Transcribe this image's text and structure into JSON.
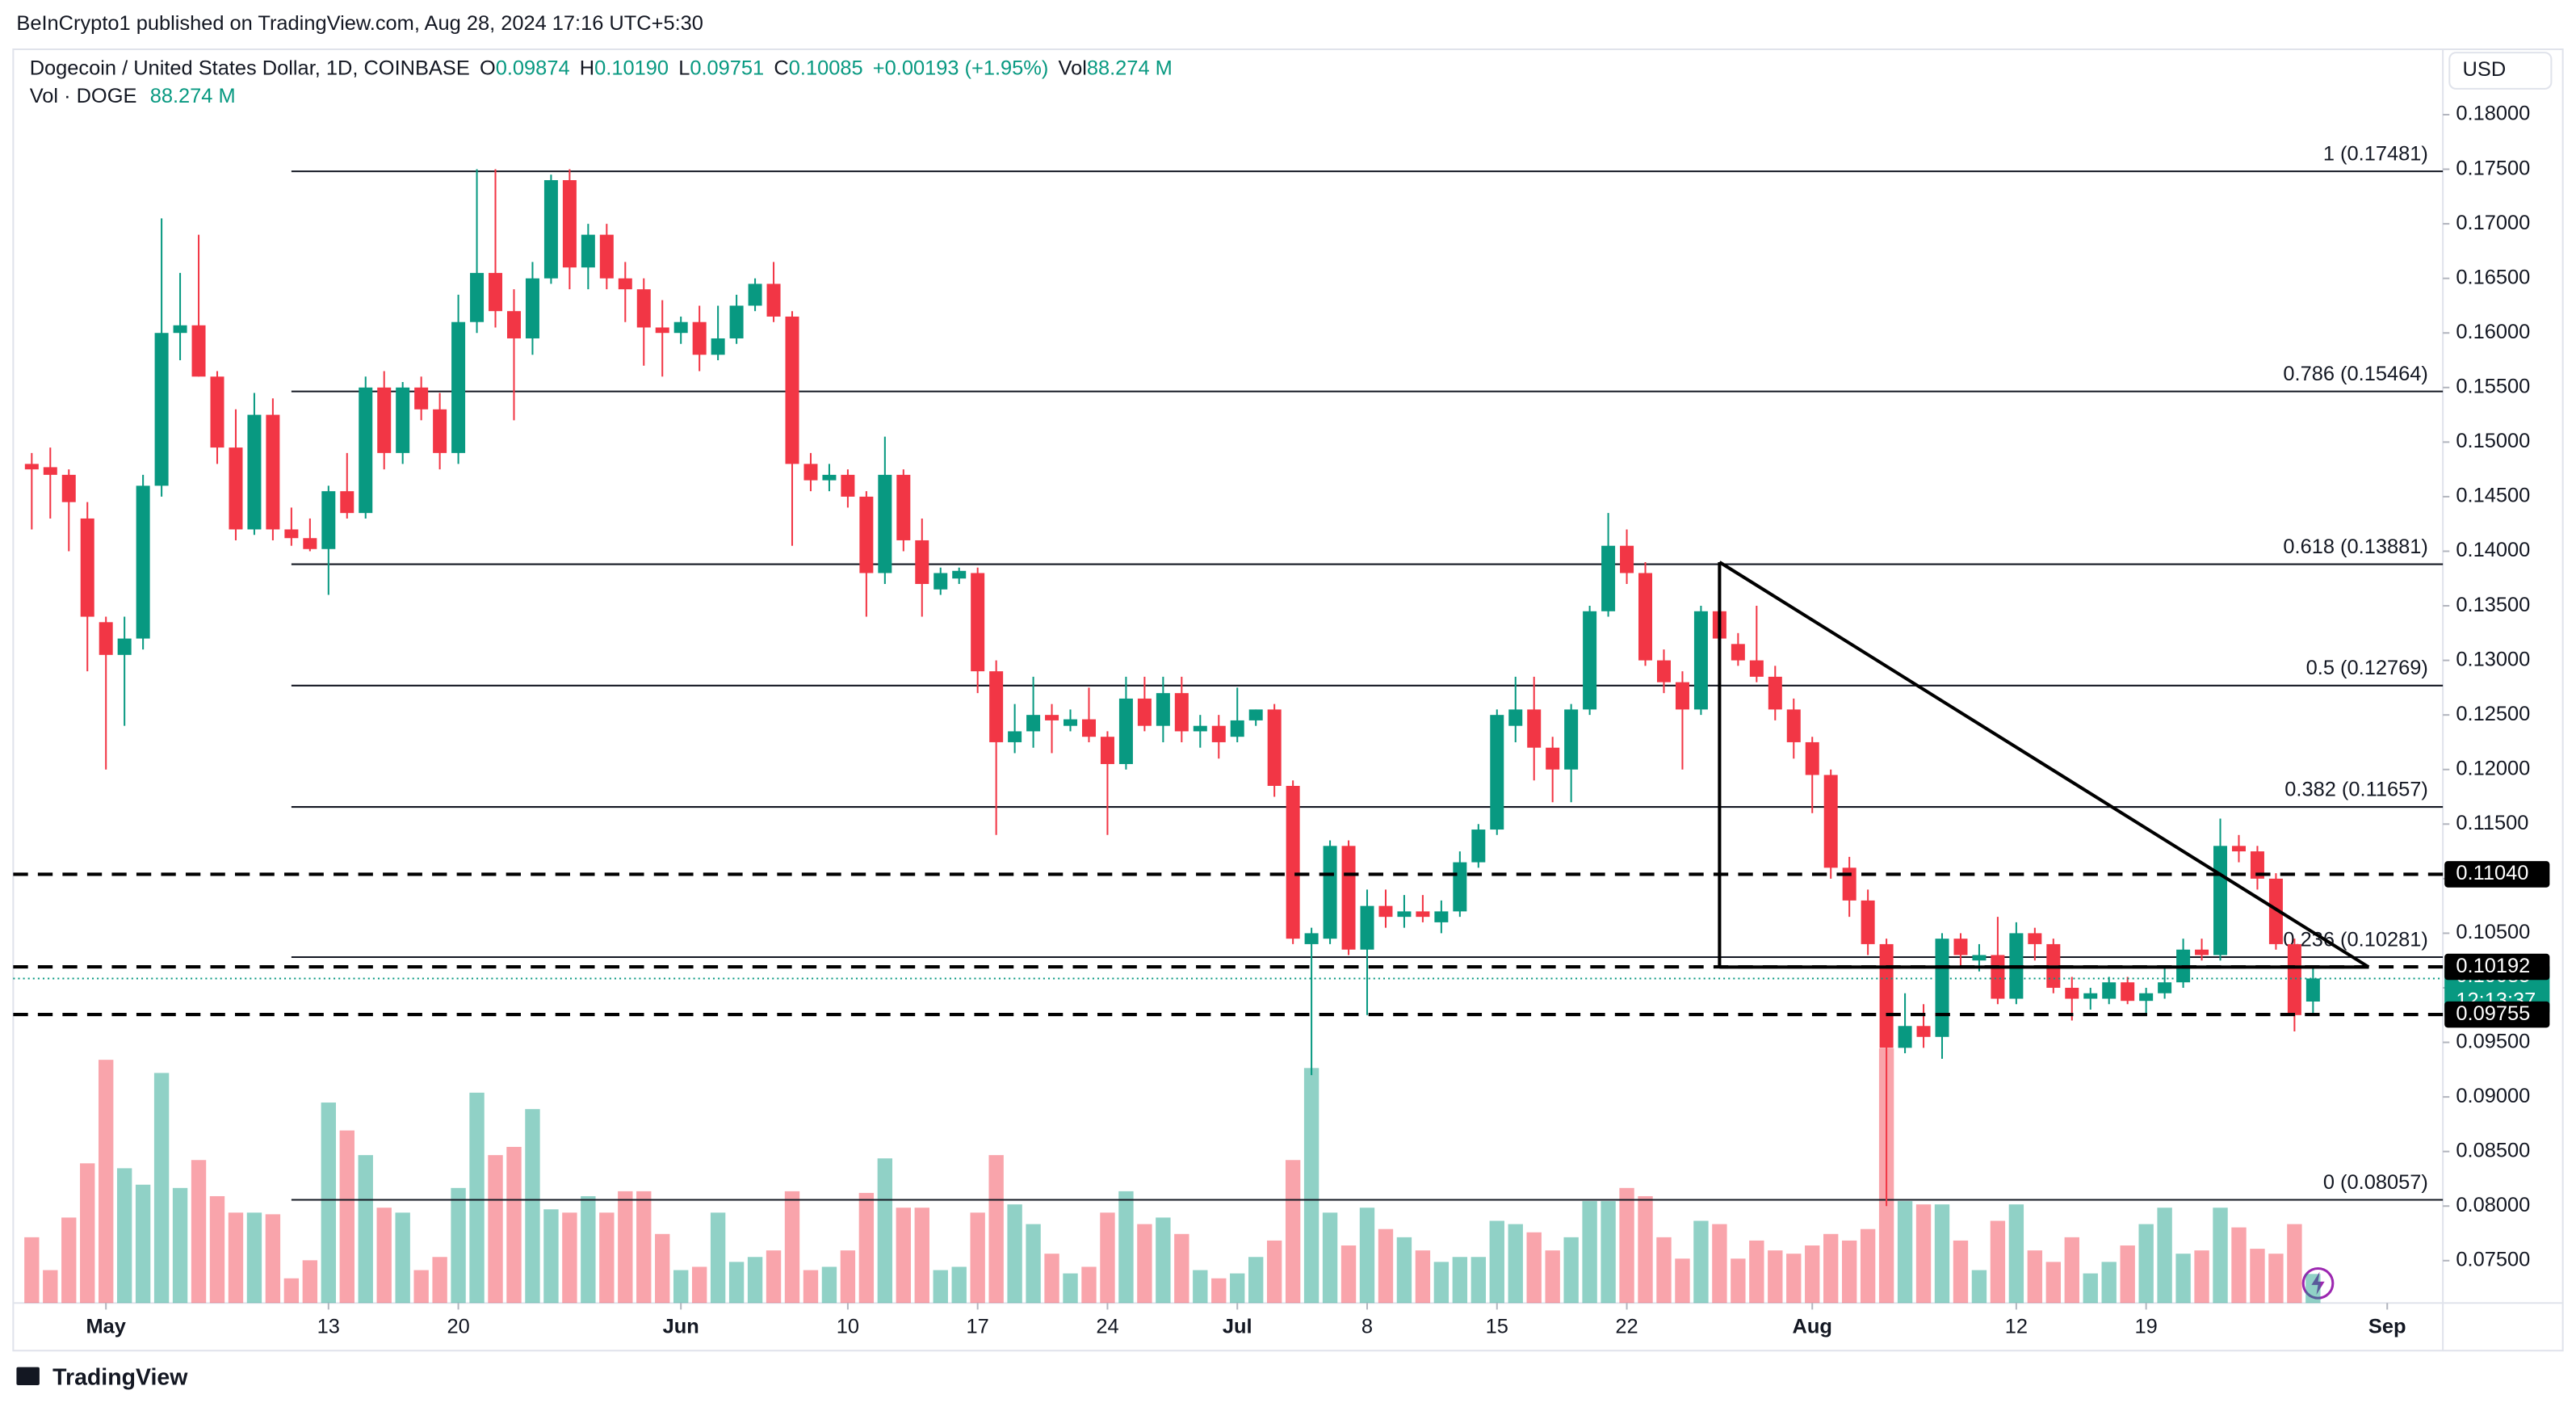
{
  "chart_data": {
    "type": "candlestick",
    "header": {
      "publisher": "BeInCrypto1 published on TradingView.com, Aug 28, 2024 17:16 UTC+5:30",
      "symbol": "Dogecoin / United States Dollar, 1D, COINBASE",
      "o_label": "O",
      "o": "0.09874",
      "h_label": "H",
      "h": "0.10190",
      "l_label": "L",
      "l": "0.09751",
      "c_label": "C",
      "c": "0.10085",
      "change": "+0.00193 (+1.95%)",
      "vol_label": "Vol",
      "vol": "88.274 M",
      "vol_title": "Vol · DOGE",
      "vol_value": "88.274 M"
    },
    "currency": "USD",
    "countdown": "12:13:37",
    "brand": "TradingView",
    "up_color": "#089981",
    "down_color": "#f23645",
    "x": [
      "2024-04-27",
      "2024-04-28",
      "2024-04-29",
      "2024-04-30",
      "2024-05-01",
      "2024-05-02",
      "2024-05-03",
      "2024-05-04",
      "2024-05-05",
      "2024-05-06",
      "2024-05-07",
      "2024-05-08",
      "2024-05-09",
      "2024-05-10",
      "2024-05-11",
      "2024-05-12",
      "2024-05-13",
      "2024-05-14",
      "2024-05-15",
      "2024-05-16",
      "2024-05-17",
      "2024-05-18",
      "2024-05-19",
      "2024-05-20",
      "2024-05-21",
      "2024-05-22",
      "2024-05-23",
      "2024-05-24",
      "2024-05-25",
      "2024-05-26",
      "2024-05-27",
      "2024-05-28",
      "2024-05-29",
      "2024-05-30",
      "2024-05-31",
      "2024-06-01",
      "2024-06-02",
      "2024-06-03",
      "2024-06-04",
      "2024-06-05",
      "2024-06-06",
      "2024-06-07",
      "2024-06-08",
      "2024-06-09",
      "2024-06-10",
      "2024-06-11",
      "2024-06-12",
      "2024-06-13",
      "2024-06-14",
      "2024-06-15",
      "2024-06-16",
      "2024-06-17",
      "2024-06-18",
      "2024-06-19",
      "2024-06-20",
      "2024-06-21",
      "2024-06-22",
      "2024-06-23",
      "2024-06-24",
      "2024-06-25",
      "2024-06-26",
      "2024-06-27",
      "2024-06-28",
      "2024-06-29",
      "2024-06-30",
      "2024-07-01",
      "2024-07-02",
      "2024-07-03",
      "2024-07-04",
      "2024-07-05",
      "2024-07-06",
      "2024-07-07",
      "2024-07-08",
      "2024-07-09",
      "2024-07-10",
      "2024-07-11",
      "2024-07-12",
      "2024-07-13",
      "2024-07-14",
      "2024-07-15",
      "2024-07-16",
      "2024-07-17",
      "2024-07-18",
      "2024-07-19",
      "2024-07-20",
      "2024-07-21",
      "2024-07-22",
      "2024-07-23",
      "2024-07-24",
      "2024-07-25",
      "2024-07-26",
      "2024-07-27",
      "2024-07-28",
      "2024-07-29",
      "2024-07-30",
      "2024-07-31",
      "2024-08-01",
      "2024-08-02",
      "2024-08-03",
      "2024-08-04",
      "2024-08-05",
      "2024-08-06",
      "2024-08-07",
      "2024-08-08",
      "2024-08-09",
      "2024-08-10",
      "2024-08-11",
      "2024-08-12",
      "2024-08-13",
      "2024-08-14",
      "2024-08-15",
      "2024-08-16",
      "2024-08-17",
      "2024-08-18",
      "2024-08-19",
      "2024-08-20",
      "2024-08-21",
      "2024-08-22",
      "2024-08-23",
      "2024-08-24",
      "2024-08-25",
      "2024-08-26",
      "2024-08-27",
      "2024-08-28"
    ],
    "ohlc": [
      [
        0.148,
        0.149,
        0.142,
        0.1475
      ],
      [
        0.1477,
        0.1495,
        0.143,
        0.147
      ],
      [
        0.147,
        0.1475,
        0.14,
        0.1445
      ],
      [
        0.143,
        0.1445,
        0.129,
        0.134
      ],
      [
        0.1335,
        0.134,
        0.12,
        0.1305
      ],
      [
        0.1305,
        0.134,
        0.124,
        0.132
      ],
      [
        0.132,
        0.147,
        0.131,
        0.146
      ],
      [
        0.146,
        0.1705,
        0.145,
        0.16
      ],
      [
        0.16,
        0.1655,
        0.1575,
        0.1607
      ],
      [
        0.1607,
        0.169,
        0.156,
        0.156
      ],
      [
        0.156,
        0.1565,
        0.148,
        0.1495
      ],
      [
        0.1495,
        0.153,
        0.141,
        0.142
      ],
      [
        0.142,
        0.1545,
        0.1415,
        0.1525
      ],
      [
        0.1525,
        0.154,
        0.141,
        0.142
      ],
      [
        0.142,
        0.144,
        0.1405,
        0.1412
      ],
      [
        0.1412,
        0.143,
        0.14,
        0.1402
      ],
      [
        0.1402,
        0.146,
        0.136,
        0.1455
      ],
      [
        0.1455,
        0.149,
        0.143,
        0.1435
      ],
      [
        0.1435,
        0.156,
        0.143,
        0.155
      ],
      [
        0.155,
        0.1565,
        0.1475,
        0.149
      ],
      [
        0.149,
        0.1555,
        0.148,
        0.155
      ],
      [
        0.155,
        0.156,
        0.152,
        0.153
      ],
      [
        0.153,
        0.1545,
        0.1475,
        0.149
      ],
      [
        0.149,
        0.1635,
        0.148,
        0.161
      ],
      [
        0.161,
        0.175,
        0.16,
        0.1655
      ],
      [
        0.1655,
        0.175,
        0.1605,
        0.162
      ],
      [
        0.162,
        0.164,
        0.152,
        0.1595
      ],
      [
        0.1595,
        0.1665,
        0.158,
        0.165
      ],
      [
        0.165,
        0.1745,
        0.1645,
        0.174
      ],
      [
        0.174,
        0.175,
        0.164,
        0.166
      ],
      [
        0.166,
        0.17,
        0.164,
        0.169
      ],
      [
        0.169,
        0.17,
        0.164,
        0.165
      ],
      [
        0.165,
        0.1665,
        0.161,
        0.164
      ],
      [
        0.164,
        0.165,
        0.157,
        0.1605
      ],
      [
        0.1605,
        0.163,
        0.156,
        0.16
      ],
      [
        0.16,
        0.1615,
        0.159,
        0.161
      ],
      [
        0.161,
        0.1625,
        0.1565,
        0.158
      ],
      [
        0.158,
        0.1625,
        0.1575,
        0.1595
      ],
      [
        0.1595,
        0.1635,
        0.159,
        0.1625
      ],
      [
        0.1625,
        0.165,
        0.162,
        0.1645
      ],
      [
        0.1645,
        0.1665,
        0.161,
        0.1615
      ],
      [
        0.1615,
        0.162,
        0.1405,
        0.148
      ],
      [
        0.148,
        0.149,
        0.1455,
        0.1465
      ],
      [
        0.1465,
        0.148,
        0.1455,
        0.147
      ],
      [
        0.147,
        0.1475,
        0.144,
        0.145
      ],
      [
        0.145,
        0.1455,
        0.134,
        0.138
      ],
      [
        0.138,
        0.1505,
        0.137,
        0.147
      ],
      [
        0.147,
        0.1475,
        0.14,
        0.141
      ],
      [
        0.141,
        0.143,
        0.134,
        0.137
      ],
      [
        0.1365,
        0.1385,
        0.136,
        0.138
      ],
      [
        0.1375,
        0.1385,
        0.137,
        0.1382
      ],
      [
        0.138,
        0.1385,
        0.127,
        0.129
      ],
      [
        0.129,
        0.13,
        0.114,
        0.1225
      ],
      [
        0.1225,
        0.126,
        0.1215,
        0.1235
      ],
      [
        0.1235,
        0.1285,
        0.122,
        0.125
      ],
      [
        0.125,
        0.126,
        0.1215,
        0.1245
      ],
      [
        0.124,
        0.1255,
        0.1235,
        0.1246
      ],
      [
        0.1246,
        0.1275,
        0.1225,
        0.123
      ],
      [
        0.123,
        0.1235,
        0.114,
        0.1205
      ],
      [
        0.1205,
        0.1285,
        0.12,
        0.1265
      ],
      [
        0.1265,
        0.1285,
        0.1235,
        0.124
      ],
      [
        0.124,
        0.1285,
        0.1225,
        0.127
      ],
      [
        0.127,
        0.1285,
        0.1225,
        0.1235
      ],
      [
        0.1235,
        0.125,
        0.122,
        0.124
      ],
      [
        0.124,
        0.125,
        0.121,
        0.1225
      ],
      [
        0.123,
        0.1275,
        0.1225,
        0.1245
      ],
      [
        0.1245,
        0.1255,
        0.124,
        0.1255
      ],
      [
        0.1255,
        0.126,
        0.1175,
        0.1185
      ],
      [
        0.1185,
        0.119,
        0.104,
        0.1045
      ],
      [
        0.104,
        0.1055,
        0.092,
        0.105
      ],
      [
        0.1045,
        0.1135,
        0.104,
        0.113
      ],
      [
        0.113,
        0.1135,
        0.103,
        0.1035
      ],
      [
        0.1035,
        0.109,
        0.0975,
        0.1075
      ],
      [
        0.1075,
        0.109,
        0.1055,
        0.1065
      ],
      [
        0.1065,
        0.1085,
        0.1055,
        0.107
      ],
      [
        0.107,
        0.1085,
        0.106,
        0.1065
      ],
      [
        0.106,
        0.108,
        0.105,
        0.107
      ],
      [
        0.107,
        0.1125,
        0.1065,
        0.1115
      ],
      [
        0.1115,
        0.115,
        0.111,
        0.1145
      ],
      [
        0.1145,
        0.1255,
        0.114,
        0.125
      ],
      [
        0.124,
        0.1285,
        0.1225,
        0.1255
      ],
      [
        0.1255,
        0.1285,
        0.119,
        0.122
      ],
      [
        0.122,
        0.123,
        0.117,
        0.12
      ],
      [
        0.12,
        0.126,
        0.117,
        0.1255
      ],
      [
        0.1255,
        0.135,
        0.125,
        0.1345
      ],
      [
        0.1345,
        0.1435,
        0.134,
        0.1405
      ],
      [
        0.1405,
        0.142,
        0.137,
        0.138
      ],
      [
        0.138,
        0.139,
        0.1295,
        0.13
      ],
      [
        0.13,
        0.131,
        0.127,
        0.128
      ],
      [
        0.128,
        0.129,
        0.12,
        0.1255
      ],
      [
        0.1255,
        0.135,
        0.125,
        0.1345
      ],
      [
        0.1345,
        0.139,
        0.131,
        0.132
      ],
      [
        0.1315,
        0.1325,
        0.1295,
        0.13
      ],
      [
        0.13,
        0.135,
        0.128,
        0.1285
      ],
      [
        0.1285,
        0.1295,
        0.1245,
        0.1255
      ],
      [
        0.1255,
        0.1265,
        0.121,
        0.1225
      ],
      [
        0.1225,
        0.123,
        0.116,
        0.1195
      ],
      [
        0.1195,
        0.12,
        0.11,
        0.111
      ],
      [
        0.111,
        0.112,
        0.1065,
        0.108
      ],
      [
        0.108,
        0.109,
        0.103,
        0.104
      ],
      [
        0.104,
        0.1045,
        0.08,
        0.0945
      ],
      [
        0.0945,
        0.0995,
        0.094,
        0.0965
      ],
      [
        0.0965,
        0.0985,
        0.0945,
        0.0955
      ],
      [
        0.0955,
        0.105,
        0.0935,
        0.1045
      ],
      [
        0.1045,
        0.105,
        0.102,
        0.103
      ],
      [
        0.1025,
        0.104,
        0.1015,
        0.103
      ],
      [
        0.103,
        0.1065,
        0.0985,
        0.099
      ],
      [
        0.099,
        0.106,
        0.0985,
        0.105
      ],
      [
        0.105,
        0.1055,
        0.1025,
        0.104
      ],
      [
        0.104,
        0.1045,
        0.0995,
        0.1
      ],
      [
        0.1,
        0.101,
        0.097,
        0.099
      ],
      [
        0.099,
        0.1,
        0.098,
        0.0995
      ],
      [
        0.099,
        0.101,
        0.0985,
        0.1005
      ],
      [
        0.1005,
        0.101,
        0.0985,
        0.0988
      ],
      [
        0.0988,
        0.1,
        0.0975,
        0.0995
      ],
      [
        0.0995,
        0.102,
        0.099,
        0.1005
      ],
      [
        0.1005,
        0.1045,
        0.1,
        0.1035
      ],
      [
        0.1035,
        0.1045,
        0.1025,
        0.103
      ],
      [
        0.103,
        0.1155,
        0.1025,
        0.113
      ],
      [
        0.113,
        0.114,
        0.1115,
        0.1125
      ],
      [
        0.1125,
        0.113,
        0.109,
        0.11
      ],
      [
        0.11,
        0.1105,
        0.1035,
        0.104
      ],
      [
        0.104,
        0.1045,
        0.096,
        0.0975
      ],
      [
        0.09874,
        0.1019,
        0.09751,
        0.10085
      ]
    ],
    "volume": [
      200,
      100,
      260,
      425,
      740,
      410,
      360,
      700,
      350,
      435,
      325,
      275,
      275,
      270,
      75,
      130,
      610,
      525,
      450,
      290,
      275,
      100,
      140,
      350,
      640,
      450,
      475,
      590,
      285,
      275,
      325,
      275,
      340,
      340,
      210,
      100,
      110,
      275,
      125,
      140,
      160,
      340,
      100,
      110,
      160,
      335,
      440,
      290,
      290,
      100,
      110,
      275,
      450,
      300,
      240,
      150,
      90,
      110,
      275,
      340,
      240,
      260,
      210,
      100,
      75,
      90,
      140,
      190,
      435,
      715,
      275,
      175,
      290,
      225,
      200,
      160,
      125,
      140,
      140,
      250,
      240,
      215,
      160,
      200,
      310,
      310,
      350,
      325,
      200,
      135,
      250,
      240,
      135,
      190,
      160,
      150,
      175,
      210,
      190,
      225,
      775,
      310,
      300,
      300,
      190,
      100,
      250,
      300,
      160,
      125,
      200,
      90,
      125,
      175,
      240,
      290,
      150,
      160,
      290,
      230,
      165,
      150,
      240,
      88.274
    ],
    "xlim": [
      "2024-04-26",
      "2024-09-04"
    ],
    "ylim": [
      0.07112,
      0.18599
    ],
    "yticks": [
      {
        "value": 0.075,
        "label": "0.07500"
      },
      {
        "value": 0.08,
        "label": "0.08000"
      },
      {
        "value": 0.085,
        "label": "0.08500"
      },
      {
        "value": 0.09,
        "label": "0.09000"
      },
      {
        "value": 0.095,
        "label": "0.09500"
      },
      {
        "value": 0.1,
        "label": "0.10000"
      },
      {
        "value": 0.105,
        "label": "0.10500"
      },
      {
        "value": 0.11,
        "label": "0.11000"
      },
      {
        "value": 0.115,
        "label": "0.11500"
      },
      {
        "value": 0.12,
        "label": "0.12000"
      },
      {
        "value": 0.125,
        "label": "0.12500"
      },
      {
        "value": 0.13,
        "label": "0.13000"
      },
      {
        "value": 0.135,
        "label": "0.13500"
      },
      {
        "value": 0.14,
        "label": "0.14000"
      },
      {
        "value": 0.145,
        "label": "0.14500"
      },
      {
        "value": 0.15,
        "label": "0.15000"
      },
      {
        "value": 0.155,
        "label": "0.15500"
      },
      {
        "value": 0.16,
        "label": "0.16000"
      },
      {
        "value": 0.165,
        "label": "0.16500"
      },
      {
        "value": 0.17,
        "label": "0.17000"
      },
      {
        "value": 0.175,
        "label": "0.17500"
      },
      {
        "value": 0.18,
        "label": "0.18000"
      }
    ],
    "xticks": [
      {
        "value": "2024-05-01",
        "label": "May"
      },
      {
        "value": "2024-05-13",
        "label": "13"
      },
      {
        "value": "2024-05-20",
        "label": "20"
      },
      {
        "value": "2024-06-01",
        "label": "Jun"
      },
      {
        "value": "2024-06-10",
        "label": "10"
      },
      {
        "value": "2024-06-17",
        "label": "17"
      },
      {
        "value": "2024-06-24",
        "label": "24"
      },
      {
        "value": "2024-07-01",
        "label": "Jul"
      },
      {
        "value": "2024-07-08",
        "label": "8"
      },
      {
        "value": "2024-07-15",
        "label": "15"
      },
      {
        "value": "2024-07-22",
        "label": "22"
      },
      {
        "value": "2024-08-01",
        "label": "Aug"
      },
      {
        "value": "2024-08-12",
        "label": "12"
      },
      {
        "value": "2024-08-19",
        "label": "19"
      },
      {
        "value": "2024-09-01",
        "label": "Sep"
      }
    ],
    "fib_start": "2024-05-11",
    "fib_levels": [
      {
        "value": 0.17481,
        "label": "1 (0.17481)"
      },
      {
        "value": 0.15464,
        "label": "0.786 (0.15464)"
      },
      {
        "value": 0.13881,
        "label": "0.618 (0.13881)"
      },
      {
        "value": 0.12769,
        "label": "0.5 (0.12769)"
      },
      {
        "value": 0.11657,
        "label": "0.382 (0.11657)"
      },
      {
        "value": 0.10281,
        "label": "0.236 (0.10281)"
      },
      {
        "value": 0.08057,
        "label": "0 (0.08057)"
      }
    ],
    "levels": [
      {
        "value": 0.1104,
        "label": "0.11040"
      },
      {
        "value": 0.10192,
        "label": "0.10192"
      },
      {
        "value": 0.09755,
        "label": "0.09755"
      }
    ],
    "trendline": {
      "x": [
        "2024-07-27",
        "2024-08-31",
        "2024-07-27",
        "2024-07-27",
        "2024-07-27",
        "2024-08-31"
      ],
      "y": [
        0.139,
        0.1019,
        0.139,
        0.1019,
        0.1019,
        0.1019
      ]
    }
  }
}
